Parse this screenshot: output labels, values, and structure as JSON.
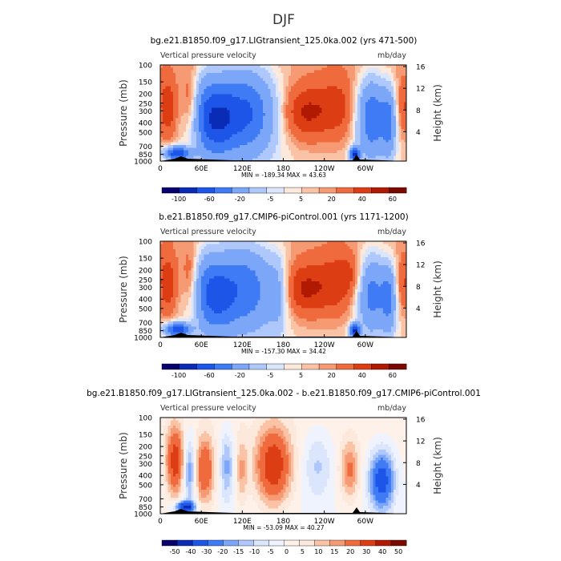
{
  "figure": {
    "title": "DJF"
  },
  "chart_data": [
    {
      "type": "heatmap",
      "title": "bg.e21.B1850.f09_g17.LIGtransient_125.0ka.002 (yrs 471-500)",
      "field_label": "Vertical pressure velocity",
      "units": "mb/day",
      "ylabel": "Pressure (mb)",
      "ylabel_right": "Height (km)",
      "x_ticks": [
        "0",
        "60E",
        "120E",
        "180",
        "120W",
        "60W"
      ],
      "y_ticks": [
        "100",
        "150",
        "200",
        "250",
        "300",
        "400",
        "500",
        "700",
        "850",
        "1000"
      ],
      "y_ticks_right": [
        "16",
        "12",
        "8",
        "4"
      ],
      "stats_text": "MIN = -189.34   MAX =  43.63",
      "min": -189.34,
      "max": 43.63,
      "colorbar_levels": [
        "-100",
        "-60",
        "-20",
        "-5",
        "5",
        "20",
        "40",
        "60"
      ],
      "colorbar_colors": [
        "#08006d",
        "#0a2bb5",
        "#1c55e8",
        "#3e7bf5",
        "#7ca6f8",
        "#afc8fb",
        "#dbe6fd",
        "#fde8dc",
        "#fbc3a6",
        "#f59a72",
        "#ef6b3e",
        "#dc3d13",
        "#b11a02",
        "#7a0a00"
      ],
      "pattern": "upper"
    },
    {
      "type": "heatmap",
      "title": "b.e21.B1850.f09_g17.CMIP6-piControl.001 (yrs 1171-1200)",
      "field_label": "Vertical pressure velocity",
      "units": "mb/day",
      "ylabel": "Pressure (mb)",
      "ylabel_right": "Height (km)",
      "x_ticks": [
        "0",
        "60E",
        "120E",
        "180",
        "120W",
        "60W"
      ],
      "y_ticks": [
        "100",
        "150",
        "200",
        "250",
        "300",
        "400",
        "500",
        "700",
        "850",
        "1000"
      ],
      "y_ticks_right": [
        "16",
        "12",
        "8",
        "4"
      ],
      "stats_text": "MIN = -157.30   MAX =  34.42",
      "min": -157.3,
      "max": 34.42,
      "colorbar_levels": [
        "-100",
        "-60",
        "-20",
        "-5",
        "5",
        "20",
        "40",
        "60"
      ],
      "colorbar_colors": [
        "#08006d",
        "#0a2bb5",
        "#1c55e8",
        "#3e7bf5",
        "#7ca6f8",
        "#afc8fb",
        "#dbe6fd",
        "#fde8dc",
        "#fbc3a6",
        "#f59a72",
        "#ef6b3e",
        "#dc3d13",
        "#b11a02",
        "#7a0a00"
      ],
      "pattern": "middle"
    },
    {
      "type": "heatmap",
      "title": "bg.e21.B1850.f09_g17.LIGtransient_125.0ka.002 - b.e21.B1850.f09_g17.CMIP6-piControl.001",
      "field_label": "Vertical pressure velocity",
      "units": "mb/day",
      "ylabel": "Pressure (mb)",
      "ylabel_right": "Height (km)",
      "x_ticks": [
        "0",
        "60E",
        "120E",
        "180",
        "120W",
        "60W"
      ],
      "y_ticks": [
        "100",
        "150",
        "200",
        "250",
        "300",
        "400",
        "500",
        "700",
        "850",
        "1000"
      ],
      "y_ticks_right": [
        "16",
        "12",
        "8",
        "4"
      ],
      "stats_text": "MIN = -53.09   MAX =  40.27",
      "min": -53.09,
      "max": 40.27,
      "colorbar_levels": [
        "-50",
        "-40",
        "-30",
        "-20",
        "-15",
        "-10",
        "-5",
        "0",
        "5",
        "10",
        "15",
        "20",
        "30",
        "40",
        "50"
      ],
      "colorbar_colors": [
        "#08006d",
        "#0a2bb5",
        "#1c55e8",
        "#3e7bf5",
        "#7ca6f8",
        "#afc8fb",
        "#dbe6fd",
        "#eef3fe",
        "#fef1ea",
        "#fde8dc",
        "#fbc3a6",
        "#f59a72",
        "#ef6b3e",
        "#dc3d13",
        "#b11a02",
        "#7a0a00"
      ],
      "pattern": "diff"
    }
  ]
}
